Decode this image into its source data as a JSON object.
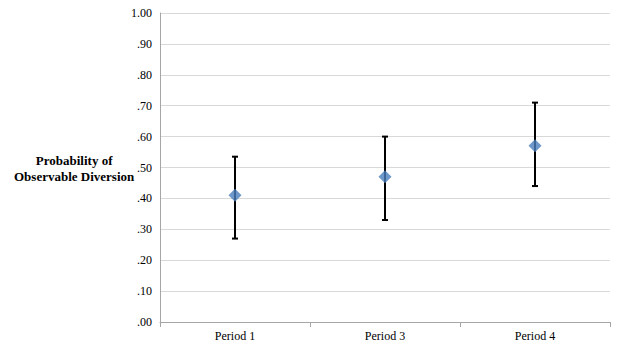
{
  "chart_data": {
    "type": "scatter",
    "y_label": "Probability of\nObservable Diversion",
    "categories": [
      "Period 1",
      "Period 3",
      "Period 4"
    ],
    "values": [
      0.41,
      0.47,
      0.57
    ],
    "lower": [
      0.27,
      0.33,
      0.44
    ],
    "upper": [
      0.535,
      0.6,
      0.71
    ],
    "color": "#4a7ebb",
    "marker": "diamond",
    "ylim": [
      0,
      1
    ],
    "yticks": [
      {
        "value": 0,
        "label": ".00"
      },
      {
        "value": 0.1,
        "label": ".10"
      },
      {
        "value": 0.2,
        "label": ".20"
      },
      {
        "value": 0.3,
        "label": ".30"
      },
      {
        "value": 0.4,
        "label": ".40"
      },
      {
        "value": 0.5,
        "label": ".50"
      },
      {
        "value": 0.6,
        "label": ".60"
      },
      {
        "value": 0.7,
        "label": ".70"
      },
      {
        "value": 0.8,
        "label": ".80"
      },
      {
        "value": 0.9,
        "label": ".90"
      },
      {
        "value": 1,
        "label": "1.00"
      }
    ],
    "grid": true
  }
}
